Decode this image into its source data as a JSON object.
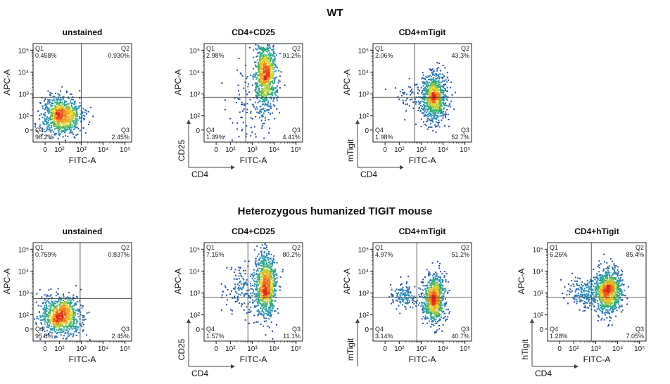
{
  "titles": {
    "wt": "WT",
    "het": "Heterozygous humanized TIGIT mouse"
  },
  "colors": {
    "low": "#2b3f9e",
    "mid": "#2fb06a",
    "high": "#e23a1c"
  },
  "chart_data": [
    {
      "type": "scatter",
      "row": "WT",
      "title": "unstained",
      "xlabel": "FITC-A",
      "ylabel": "APC-A",
      "marker_x": "",
      "marker_y": "",
      "x_ticks": [
        "0",
        "10²",
        "10³",
        "10⁴",
        "10⁵"
      ],
      "y_ticks": [
        "0",
        "10²",
        "10³",
        "10⁴",
        "10⁵"
      ],
      "quadrants": {
        "Q1": "0.458%",
        "Q2": "0.930%",
        "Q3": "2.45%",
        "Q4": "96.2%"
      },
      "gate": {
        "x": 3.0,
        "y": 2.85
      },
      "populations": [
        {
          "cx": 2.1,
          "cy": 2.0,
          "sx": 0.45,
          "sy": 0.45,
          "n": 850
        }
      ]
    },
    {
      "type": "scatter",
      "row": "WT",
      "title": "CD4+CD25",
      "xlabel": "FITC-A",
      "ylabel": "APC-A",
      "marker_x": "CD4",
      "marker_y": "CD25",
      "x_ticks": [
        "0",
        "10²",
        "10³",
        "10⁴",
        "10⁵"
      ],
      "y_ticks": [
        "0",
        "10²",
        "10³",
        "10⁴",
        "10⁵"
      ],
      "quadrants": {
        "Q1": "2.98%",
        "Q2": "91.2%",
        "Q3": "4.41%",
        "Q4": "1.39%"
      },
      "gate": {
        "x": 2.7,
        "y": 2.85
      },
      "populations": [
        {
          "cx": 3.6,
          "cy": 3.9,
          "sx": 0.25,
          "sy": 0.85,
          "n": 900
        },
        {
          "cx": 2.8,
          "cy": 2.6,
          "sx": 0.5,
          "sy": 0.8,
          "n": 90
        }
      ]
    },
    {
      "type": "scatter",
      "row": "WT",
      "title": "CD4+mTigit",
      "xlabel": "FITC-A",
      "ylabel": "APC-A",
      "marker_x": "CD4",
      "marker_y": "mTigit",
      "x_ticks": [
        "0",
        "10²",
        "10³",
        "10⁴",
        "10⁵"
      ],
      "y_ticks": [
        "0",
        "10²",
        "10³",
        "10⁴",
        "10⁵"
      ],
      "quadrants": {
        "Q1": "2.06%",
        "Q2": "43.3%",
        "Q3": "52.7%",
        "Q4": "1.98%"
      },
      "gate": {
        "x": 2.7,
        "y": 2.85
      },
      "populations": [
        {
          "cx": 3.6,
          "cy": 2.85,
          "sx": 0.3,
          "sy": 0.55,
          "n": 900
        },
        {
          "cx": 2.6,
          "cy": 2.8,
          "sx": 0.4,
          "sy": 0.35,
          "n": 60
        }
      ]
    },
    {
      "type": "scatter",
      "row": "Heterozygous humanized TIGIT mouse",
      "title": "unstained",
      "xlabel": "FITC-A",
      "ylabel": "APC-A",
      "marker_x": "",
      "marker_y": "",
      "x_ticks": [
        "0",
        "10²",
        "10³",
        "10⁴",
        "10⁵"
      ],
      "y_ticks": [
        "0",
        "10²",
        "10³",
        "10⁴",
        "10⁵"
      ],
      "quadrants": {
        "Q1": "0.759%",
        "Q2": "0.837%",
        "Q3": "2.45%",
        "Q4": "95.8%"
      },
      "gate": {
        "x": 2.95,
        "y": 2.75
      },
      "populations": [
        {
          "cx": 2.05,
          "cy": 1.95,
          "sx": 0.45,
          "sy": 0.45,
          "n": 850
        }
      ]
    },
    {
      "type": "scatter",
      "row": "Heterozygous humanized TIGIT mouse",
      "title": "CD4+CD25",
      "xlabel": "FITC-A",
      "ylabel": "APC-A",
      "marker_x": "CD4",
      "marker_y": "CD25",
      "x_ticks": [
        "0",
        "10²",
        "10³",
        "10⁴",
        "10⁵"
      ],
      "y_ticks": [
        "0",
        "10²",
        "10³",
        "10⁴",
        "10⁵"
      ],
      "quadrants": {
        "Q1": "7.15%",
        "Q2": "80.2%",
        "Q3": "11.1%",
        "Q4": "1.57%"
      },
      "gate": {
        "x": 2.8,
        "y": 2.8
      },
      "populations": [
        {
          "cx": 3.6,
          "cy": 3.3,
          "sx": 0.25,
          "sy": 0.8,
          "n": 900
        },
        {
          "cx": 2.6,
          "cy": 3.2,
          "sx": 0.45,
          "sy": 0.55,
          "n": 150
        }
      ]
    },
    {
      "type": "scatter",
      "row": "Heterozygous humanized TIGIT mouse",
      "title": "CD4+mTigit",
      "xlabel": "FITC-A",
      "ylabel": "APC-A",
      "marker_x": "",
      "marker_y": "mTigit",
      "x_ticks": [
        "0",
        "10²",
        "10³",
        "10⁴",
        "10⁵"
      ],
      "y_ticks": [
        "0",
        "10²",
        "10³",
        "10⁴",
        "10⁵"
      ],
      "quadrants": {
        "Q1": "4.97%",
        "Q2": "51.2%",
        "Q3": "40.7%",
        "Q4": "3.14%"
      },
      "gate": {
        "x": 2.8,
        "y": 2.8
      },
      "populations": [
        {
          "cx": 3.6,
          "cy": 2.75,
          "sx": 0.25,
          "sy": 0.55,
          "n": 850
        },
        {
          "cx": 2.3,
          "cy": 2.85,
          "sx": 0.35,
          "sy": 0.3,
          "n": 150
        }
      ]
    },
    {
      "type": "scatter",
      "row": "Heterozygous humanized TIGIT mouse",
      "title": "CD4+hTigit",
      "xlabel": "FITC-A",
      "ylabel": "APC-A",
      "marker_x": "CD4",
      "marker_y": "hTigit",
      "x_ticks": [
        "0",
        "10²",
        "10³",
        "10⁴",
        "10⁵"
      ],
      "y_ticks": [
        "0",
        "10²",
        "10³",
        "10⁴",
        "10⁵"
      ],
      "quadrants": {
        "Q1": "6.26%",
        "Q2": "85.4%",
        "Q3": "7.05%",
        "Q4": "1.28%"
      },
      "gate": {
        "x": 2.8,
        "y": 2.8
      },
      "populations": [
        {
          "cx": 3.6,
          "cy": 3.1,
          "sx": 0.3,
          "sy": 0.5,
          "n": 900
        },
        {
          "cx": 2.6,
          "cy": 3.0,
          "sx": 0.45,
          "sy": 0.35,
          "n": 250
        }
      ]
    }
  ]
}
